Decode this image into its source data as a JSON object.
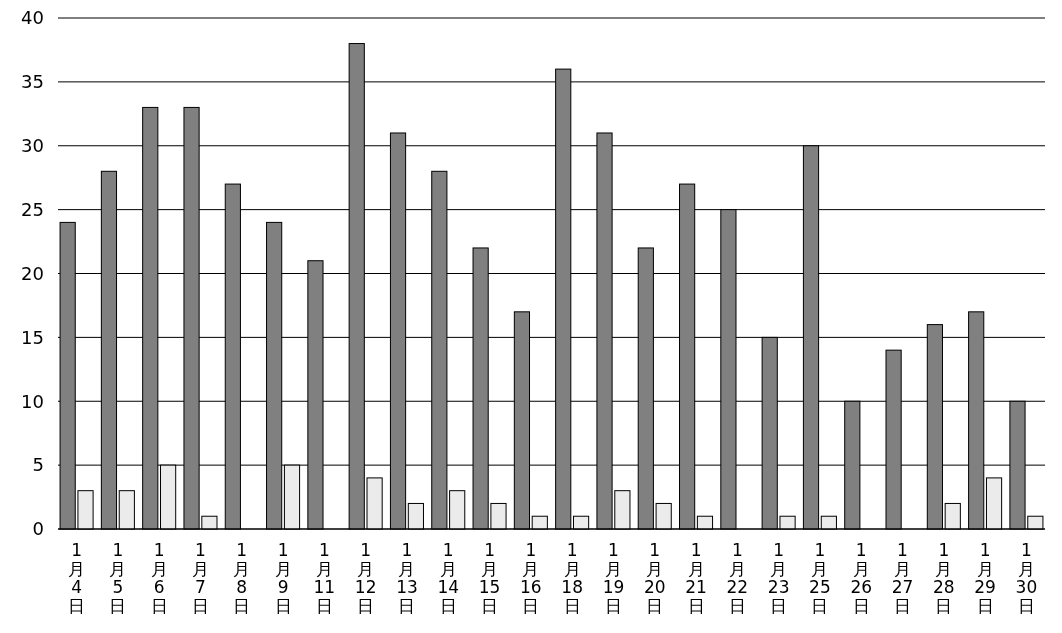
{
  "chart_data": {
    "type": "bar",
    "categories": [
      "1月4日",
      "1月5日",
      "1月6日",
      "1月7日",
      "1月8日",
      "1月9日",
      "1月11日",
      "1月12日",
      "1月13日",
      "1月14日",
      "1月15日",
      "1月16日",
      "1月18日",
      "1月19日",
      "1月20日",
      "1月21日",
      "1月22日",
      "1月23日",
      "1月25日",
      "1月26日",
      "1月27日",
      "1月28日",
      "1月29日",
      "1月30日"
    ],
    "series": [
      {
        "color": "#808080",
        "values": [
          24,
          28,
          33,
          33,
          27,
          24,
          21,
          38,
          31,
          28,
          22,
          17,
          36,
          31,
          22,
          27,
          25,
          15,
          30,
          10,
          14,
          16,
          17,
          10
        ]
      },
      {
        "color": "#ebebeb",
        "values": [
          3,
          3,
          5,
          1,
          null,
          5,
          null,
          4,
          2,
          3,
          2,
          1,
          1,
          3,
          2,
          1,
          null,
          1,
          1,
          null,
          null,
          2,
          4,
          1
        ]
      }
    ],
    "ylim": [
      0,
      40
    ],
    "yticks": [
      0,
      5,
      10,
      15,
      20,
      25,
      30,
      35,
      40
    ],
    "grid": "y"
  }
}
